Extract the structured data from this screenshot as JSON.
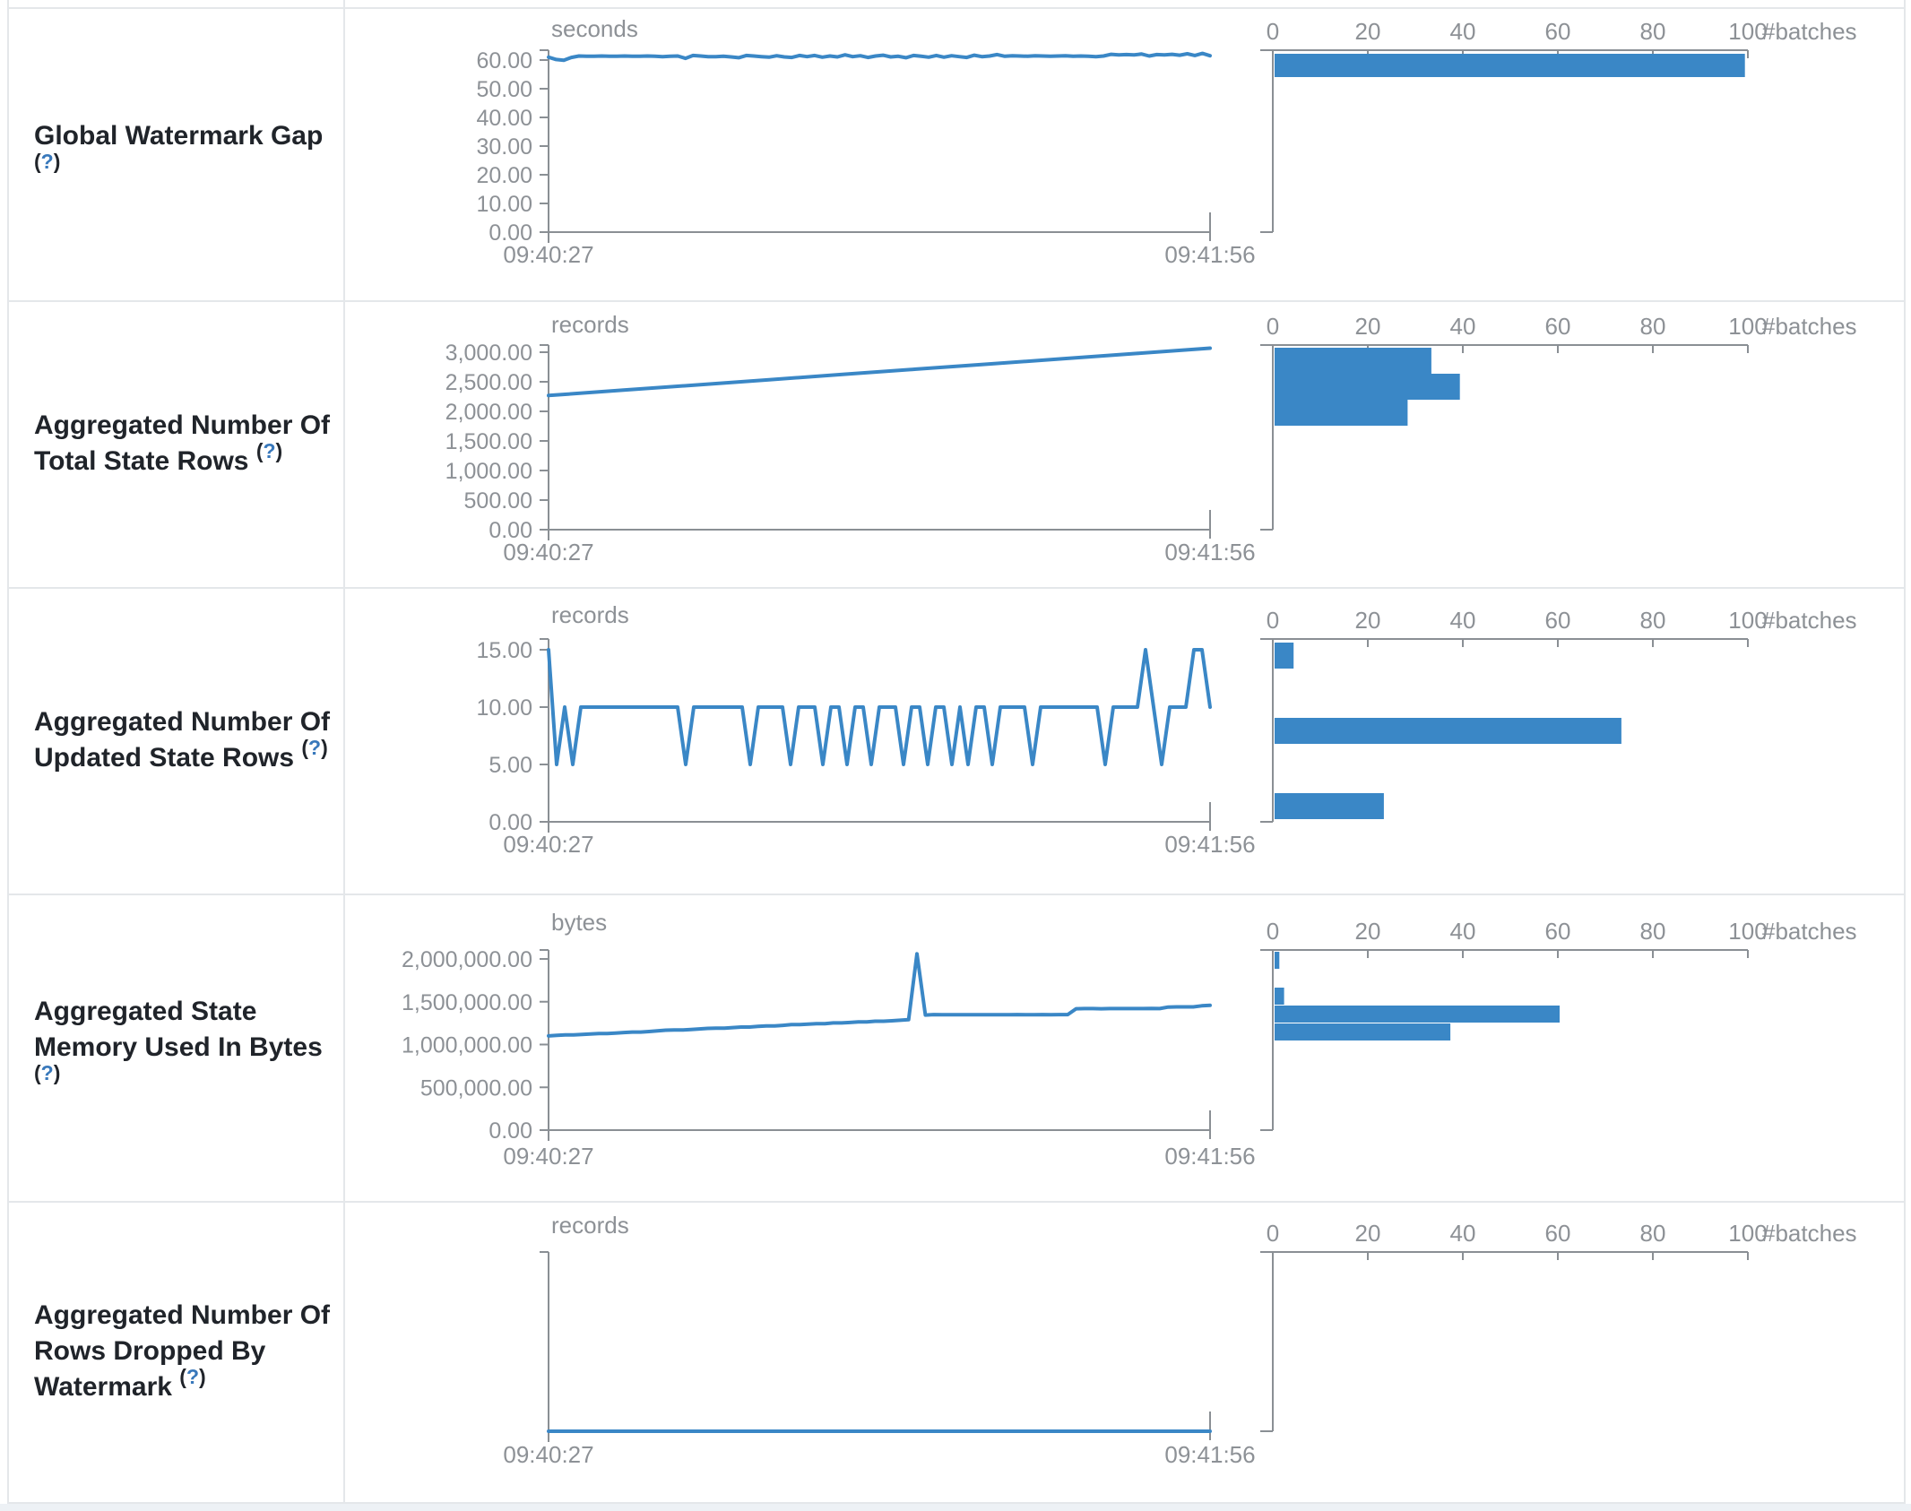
{
  "colors": {
    "accent_blue": "#3a87c6",
    "axis_gray": "#8a8f94",
    "tick_text_gray": "#8d9196",
    "label_text": "#20242a",
    "help_blue": "#3878bb",
    "border_gray": "#e4e7ea"
  },
  "histogram_axis": {
    "tick_labels": [
      "0",
      "20",
      "40",
      "60",
      "80",
      "100"
    ],
    "tick_values": [
      0,
      20,
      40,
      60,
      80,
      100
    ],
    "max": 100,
    "unit_label": "#batches"
  },
  "rows": [
    {
      "label": "Global Watermark Gap\n",
      "help": {
        "open": "(",
        "q": "?",
        "close": ")"
      },
      "timeline": {
        "type": "line",
        "unit": "seconds",
        "x_start_label": "09:40:27",
        "x_end_label": "09:41:56",
        "y_ticks": [
          {
            "label": "60.00",
            "value": 60
          },
          {
            "label": "50.00",
            "value": 50
          },
          {
            "label": "40.00",
            "value": 40
          },
          {
            "label": "30.00",
            "value": 30
          },
          {
            "label": "20.00",
            "value": 20
          },
          {
            "label": "10.00",
            "value": 10
          },
          {
            "label": "0.00",
            "value": 0
          }
        ],
        "series": [
          61.0,
          60.2,
          59.9,
          60.9,
          61.4,
          61.3,
          61.3,
          61.4,
          61.3,
          61.3,
          61.4,
          61.3,
          61.3,
          61.4,
          61.3,
          61.2,
          61.3,
          61.4,
          60.6,
          61.6,
          61.4,
          61.2,
          61.2,
          61.3,
          61.1,
          60.8,
          61.6,
          61.4,
          61.2,
          61.0,
          61.5,
          61.1,
          60.9,
          61.6,
          61.2,
          61.6,
          61.0,
          61.4,
          61.1,
          61.8,
          61.2,
          61.5,
          60.9,
          61.4,
          61.7,
          61.1,
          61.3,
          60.8,
          61.6,
          61.3,
          61.0,
          61.6,
          61.0,
          61.5,
          61.2,
          60.9,
          61.7,
          61.2,
          61.4,
          61.9,
          61.3,
          61.5,
          61.4,
          61.3,
          61.5,
          61.4,
          61.3,
          61.4,
          61.5,
          61.3,
          61.4,
          61.3,
          61.2,
          61.4,
          62.0,
          61.8,
          61.9,
          61.8,
          62.1,
          61.4,
          61.9,
          61.8,
          62.0,
          61.7,
          62.2,
          61.6,
          62.3,
          61.5
        ]
      },
      "histogram": {
        "type": "bar",
        "bars": [
          {
            "batches": 99,
            "bin": 0
          }
        ]
      }
    },
    {
      "label": "Aggregated Number Of\nTotal State Rows ",
      "help": {
        "open": "(",
        "q": "?",
        "close": ")"
      },
      "timeline": {
        "type": "line",
        "unit": "records",
        "x_start_label": "09:40:27",
        "x_end_label": "09:41:56",
        "y_ticks": [
          {
            "label": "3,000.00",
            "value": 3000
          },
          {
            "label": "2,500.00",
            "value": 2500
          },
          {
            "label": "2,000.00",
            "value": 2000
          },
          {
            "label": "1,500.00",
            "value": 1500
          },
          {
            "label": "1,000.00",
            "value": 1000
          },
          {
            "label": "500.00",
            "value": 500
          },
          {
            "label": "0.00",
            "value": 0
          }
        ],
        "series": [
          2268,
          2357,
          2446,
          2535,
          2624,
          2713,
          2801,
          2890,
          2979,
          3068
        ]
      },
      "histogram": {
        "type": "bar",
        "bars": [
          {
            "batches": 33,
            "bin": 0
          },
          {
            "batches": 39,
            "bin": 1
          },
          {
            "batches": 28,
            "bin": 2
          }
        ]
      }
    },
    {
      "label": "Aggregated Number Of\nUpdated State Rows ",
      "help": {
        "open": "(",
        "q": "?",
        "close": ")"
      },
      "timeline": {
        "type": "line",
        "unit": "records",
        "x_start_label": "09:40:27",
        "x_end_label": "09:41:56",
        "y_ticks": [
          {
            "label": "15.00",
            "value": 15
          },
          {
            "label": "10.00",
            "value": 10
          },
          {
            "label": "5.00",
            "value": 5
          },
          {
            "label": "0.00",
            "value": 0
          }
        ],
        "series": [
          15,
          5,
          10,
          5,
          10,
          10,
          10,
          10,
          10,
          10,
          10,
          10,
          10,
          10,
          10,
          10,
          10,
          5,
          10,
          10,
          10,
          10,
          10,
          10,
          10,
          5,
          10,
          10,
          10,
          10,
          5,
          10,
          10,
          10,
          5,
          10,
          10,
          5,
          10,
          10,
          5,
          10,
          10,
          10,
          5,
          10,
          10,
          5,
          10,
          10,
          5,
          10,
          5,
          10,
          10,
          5,
          10,
          10,
          10,
          10,
          5,
          10,
          10,
          10,
          10,
          10,
          10,
          10,
          10,
          5,
          10,
          10,
          10,
          10,
          15,
          10,
          5,
          10,
          10,
          10,
          15,
          15,
          10
        ]
      },
      "histogram": {
        "type": "bar",
        "bars": [
          {
            "batches": 4,
            "bin": 0
          },
          {
            "batches": 73,
            "bin": 2
          },
          {
            "batches": 23,
            "bin": 4
          }
        ]
      }
    },
    {
      "label": "Aggregated State\nMemory Used In Bytes\n",
      "help": {
        "open": "(",
        "q": "?",
        "close": ")"
      },
      "timeline": {
        "type": "line",
        "unit": "bytes",
        "x_start_label": "09:40:27",
        "x_end_label": "09:41:56",
        "y_ticks": [
          {
            "label": "2,000,000.00",
            "value": 2000000
          },
          {
            "label": "1,500,000.00",
            "value": 1500000
          },
          {
            "label": "1,000,000.00",
            "value": 1000000
          },
          {
            "label": "500,000.00",
            "value": 500000
          },
          {
            "label": "0.00",
            "value": 0
          }
        ],
        "series": [
          1100000,
          1108000,
          1112000,
          1112000,
          1118000,
          1124000,
          1128000,
          1128000,
          1133000,
          1140000,
          1146000,
          1146000,
          1152000,
          1160000,
          1168000,
          1170000,
          1170000,
          1176000,
          1182000,
          1188000,
          1192000,
          1192000,
          1198000,
          1204000,
          1204000,
          1212000,
          1218000,
          1218000,
          1224000,
          1232000,
          1232000,
          1238000,
          1244000,
          1244000,
          1252000,
          1252000,
          1258000,
          1264000,
          1264000,
          1272000,
          1272000,
          1278000,
          1284000,
          1290000,
          2060000,
          1345000,
          1350000,
          1348000,
          1348000,
          1348000,
          1348000,
          1348000,
          1348000,
          1348000,
          1348000,
          1348000,
          1350000,
          1348000,
          1348000,
          1350000,
          1348000,
          1350000,
          1350000,
          1418000,
          1420000,
          1420000,
          1418000,
          1420000,
          1420000,
          1420000,
          1420000,
          1420000,
          1422000,
          1420000,
          1438000,
          1440000,
          1440000,
          1440000,
          1452000,
          1458000
        ]
      },
      "histogram": {
        "type": "bar",
        "bars": [
          {
            "batches": 1,
            "bin": 0
          },
          {
            "batches": 2,
            "bin": 2
          },
          {
            "batches": 60,
            "bin": 3
          },
          {
            "batches": 37,
            "bin": 4
          }
        ]
      }
    },
    {
      "label": "Aggregated Number Of\nRows Dropped By\nWatermark ",
      "help": {
        "open": "(",
        "q": "?",
        "close": ")"
      },
      "timeline": {
        "type": "line",
        "unit": "records",
        "x_start_label": "09:40:27",
        "x_end_label": "09:41:56",
        "y_ticks": [],
        "series": [
          0,
          0
        ]
      },
      "histogram": {
        "type": "bar",
        "bars": []
      }
    }
  ]
}
